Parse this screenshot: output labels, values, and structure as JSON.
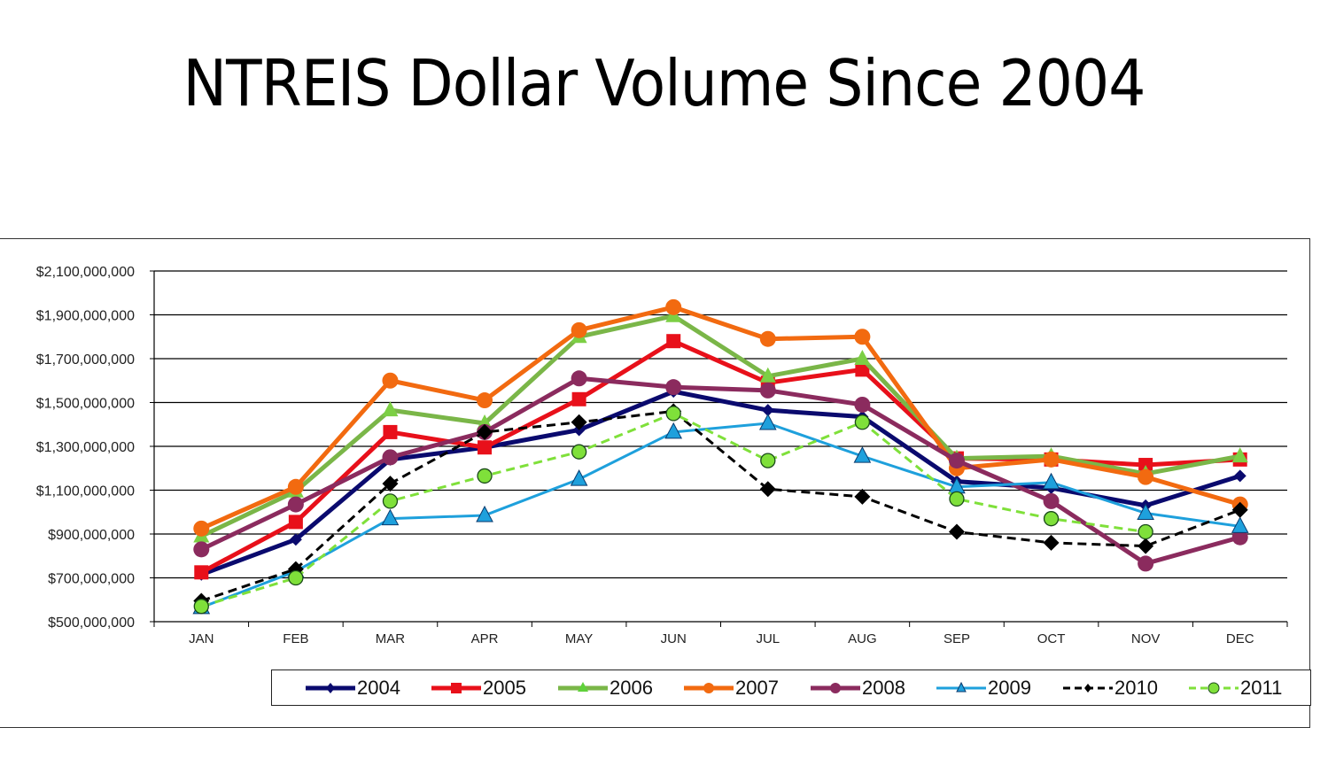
{
  "title": "NTREIS Dollar Volume Since 2004",
  "chart_data": {
    "type": "line",
    "title": "NTREIS Dollar Volume Since 2004",
    "xlabel": "",
    "ylabel": "",
    "categories": [
      "JAN",
      "FEB",
      "MAR",
      "APR",
      "MAY",
      "JUN",
      "JUL",
      "AUG",
      "SEP",
      "OCT",
      "NOV",
      "DEC"
    ],
    "ylim": [
      500000000,
      2100000000
    ],
    "yticks": [
      500000000,
      700000000,
      900000000,
      1100000000,
      1300000000,
      1500000000,
      1700000000,
      1900000000,
      2100000000
    ],
    "ytick_labels": [
      "$500,000,000",
      "$700,000,000",
      "$900,000,000",
      "$1,100,000,000",
      "$1,300,000,000",
      "$1,500,000,000",
      "$1,700,000,000",
      "$1,900,000,000",
      "$2,100,000,000"
    ],
    "grid": true,
    "legend_position": "bottom",
    "series": [
      {
        "name": "2004",
        "color": "#0a0a6e",
        "marker": "diamond",
        "dash": false,
        "width": 5,
        "values": [
          715000000,
          875000000,
          1240000000,
          1295000000,
          1375000000,
          1550000000,
          1465000000,
          1435000000,
          1140000000,
          1110000000,
          1030000000,
          1165000000
        ]
      },
      {
        "name": "2005",
        "color": "#e8101a",
        "marker": "square",
        "dash": false,
        "width": 5,
        "values": [
          725000000,
          955000000,
          1365000000,
          1295000000,
          1515000000,
          1780000000,
          1590000000,
          1650000000,
          1245000000,
          1240000000,
          1215000000,
          1240000000
        ]
      },
      {
        "name": "2006",
        "color": "#7ab648",
        "marker": "triangle",
        "dash": false,
        "width": 5,
        "values": [
          890000000,
          1095000000,
          1465000000,
          1405000000,
          1800000000,
          1895000000,
          1620000000,
          1700000000,
          1245000000,
          1255000000,
          1175000000,
          1255000000
        ]
      },
      {
        "name": "2007",
        "color": "#f26a10",
        "marker": "circle",
        "dash": false,
        "width": 5,
        "values": [
          925000000,
          1115000000,
          1600000000,
          1510000000,
          1830000000,
          1935000000,
          1790000000,
          1800000000,
          1200000000,
          1240000000,
          1160000000,
          1035000000
        ]
      },
      {
        "name": "2008",
        "color": "#8b2b5e",
        "marker": "circle",
        "dash": false,
        "width": 5,
        "values": [
          830000000,
          1035000000,
          1250000000,
          1365000000,
          1610000000,
          1570000000,
          1555000000,
          1490000000,
          1235000000,
          1050000000,
          765000000,
          885000000
        ]
      },
      {
        "name": "2009",
        "color": "#1ea0dc",
        "marker": "triangle",
        "dash": false,
        "width": 3,
        "values": [
          565000000,
          730000000,
          970000000,
          985000000,
          1150000000,
          1365000000,
          1405000000,
          1255000000,
          1115000000,
          1135000000,
          995000000,
          935000000
        ]
      },
      {
        "name": "2010",
        "color": "#000000",
        "marker": "diamond",
        "dash": true,
        "width": 3,
        "values": [
          595000000,
          740000000,
          1130000000,
          1365000000,
          1410000000,
          1460000000,
          1105000000,
          1070000000,
          910000000,
          860000000,
          845000000,
          1010000000
        ]
      },
      {
        "name": "2011",
        "color": "#7fe03a",
        "marker": "circle-outline",
        "dash": true,
        "width": 3,
        "values": [
          570000000,
          700000000,
          1050000000,
          1165000000,
          1275000000,
          1450000000,
          1235000000,
          1410000000,
          1060000000,
          970000000,
          910000000,
          null
        ]
      }
    ]
  },
  "legend": {
    "items": [
      {
        "label": "2004"
      },
      {
        "label": "2005"
      },
      {
        "label": "2006"
      },
      {
        "label": "2007"
      },
      {
        "label": "2008"
      },
      {
        "label": "2009"
      },
      {
        "label": "2010"
      },
      {
        "label": "2011"
      }
    ]
  }
}
